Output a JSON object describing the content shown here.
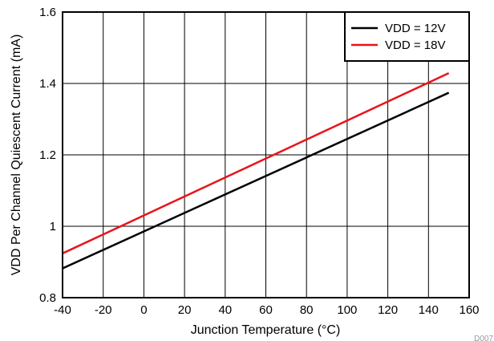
{
  "chart_data": {
    "type": "line",
    "title": "",
    "xlabel": "Junction Temperature (°C)",
    "ylabel": "VDD Per Channel Quiescent Current (mA)",
    "xlim": [
      -40,
      160
    ],
    "ylim": [
      0.8,
      1.6
    ],
    "xticks": [
      -40,
      -20,
      0,
      20,
      40,
      60,
      80,
      100,
      120,
      140,
      160
    ],
    "xtick_labels": [
      "-40",
      "-20",
      "0",
      "20",
      "40",
      "60",
      "80",
      "100",
      "120",
      "140",
      "160"
    ],
    "yticks": [
      0.8,
      1.0,
      1.2,
      1.4,
      1.6
    ],
    "ytick_labels": [
      "0.8",
      "1",
      "1.2",
      "1.4",
      "1.6"
    ],
    "grid": true,
    "legend_position": "top-right",
    "series": [
      {
        "name": "VDD = 12V",
        "color": "#000000",
        "x": [
          -40,
          150
        ],
        "y": [
          0.882,
          1.374
        ]
      },
      {
        "name": "VDD = 18V",
        "color": "#e8141b",
        "x": [
          -40,
          150
        ],
        "y": [
          0.924,
          1.429
        ]
      }
    ],
    "figure_code": "D007"
  }
}
